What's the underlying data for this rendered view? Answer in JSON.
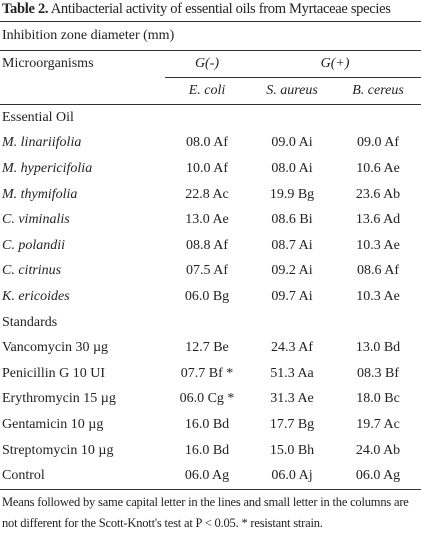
{
  "header": {
    "label": "Table 2.",
    "title": "Antibacterial activity of essential oils from Myrtaceae species"
  },
  "subtitle": "Inhibition zone diameter (mm)",
  "columns": {
    "first": "Microorganisms",
    "gram_negative": "G(-)",
    "gram_positive": "G(+)",
    "species": [
      "E. coli",
      "S. aureus",
      "B. cereus"
    ]
  },
  "sections": [
    {
      "name": "Essential Oil",
      "italic": true,
      "rows": [
        [
          "M. linariifolia",
          "08.0 Af",
          "09.0 Ai",
          "09.0 Af"
        ],
        [
          "M.  hypericifolia",
          "10.0 Af",
          "08.0 Ai",
          "10.6 Ae"
        ],
        [
          "M. thymifolia",
          "22.8 Ac",
          "19.9 Bg",
          "23.6 Ab"
        ],
        [
          "C. viminalis",
          "13.0 Ae",
          "08.6 Bi",
          "13.6 Ad"
        ],
        [
          "C. polandii",
          "08.8 Af",
          "08.7 Ai",
          "10.3 Ae"
        ],
        [
          "C. citrinus",
          "07.5 Af",
          "09.2 Ai",
          "08.6 Af"
        ],
        [
          "K. ericoides",
          "06.0 Bg",
          "09.7 Ai",
          "10.3 Ae"
        ]
      ]
    },
    {
      "name": "Standards",
      "italic": false,
      "rows": [
        [
          "Vancomycin 30 µg",
          "12.7 Be",
          "24.3 Af",
          "13.0 Bd"
        ],
        [
          "Penicillin G 10 UI",
          "07.7 Bf *",
          "51.3 Aa",
          "08.3 Bf"
        ],
        [
          "Erythromycin 15 µg",
          "06.0 Cg *",
          "31.3 Ae",
          "18.0 Bc"
        ],
        [
          "Gentamicin 10 µg",
          "16.0 Bd",
          "17.7 Bg",
          "19.7 Ac"
        ],
        [
          "Streptomycin 10 µg",
          "16.0 Bd",
          "15.0 Bh",
          "24.0 Ab"
        ],
        [
          "Control",
          "06.0 Ag",
          "06.0 Aj",
          "06.0 Ag"
        ]
      ]
    }
  ],
  "footnote": "Means followed by same capital letter in the lines and small letter in the columns are not different for the Scott-Knott's test at P < 0.05. * resistant strain."
}
